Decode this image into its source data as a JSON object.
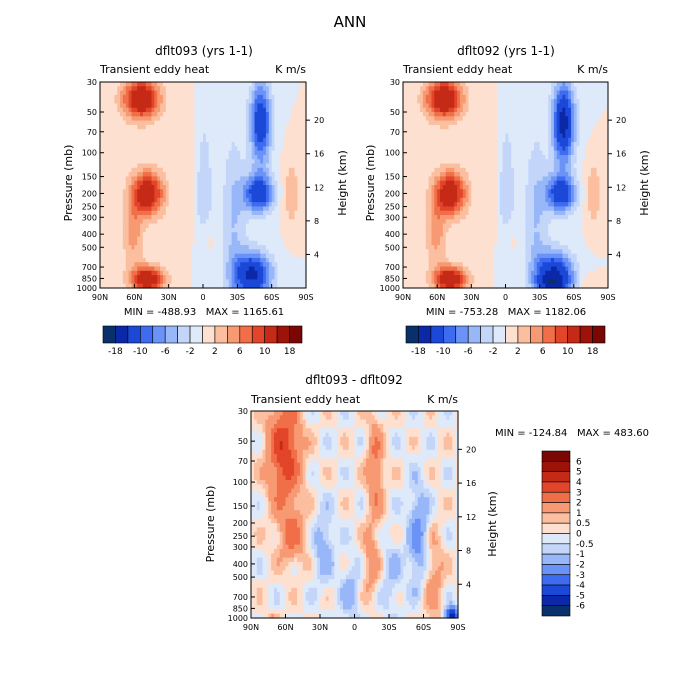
{
  "page_title": "ANN",
  "chart_data": [
    {
      "type": "heatmap",
      "title": "dflt093 (yrs 1-1)",
      "subtitle_left": "Transient eddy heat",
      "subtitle_right": "K m/s",
      "xlabel": "",
      "ylabel": "Pressure (mb)",
      "ylabel_right": "Height (km)",
      "x_ticks": [
        "90N",
        "60N",
        "30N",
        "0",
        "30S",
        "60S",
        "90S"
      ],
      "y_ticks": [
        "30",
        "50",
        "70",
        "100",
        "150",
        "200",
        "250",
        "300",
        "400",
        "500",
        "700",
        "850",
        "1000"
      ],
      "y_ticks_right": [
        "20",
        "16",
        "12",
        "8",
        "4"
      ],
      "ylim": [
        1000,
        30
      ],
      "min_label": "MIN = -488.93",
      "max_label": "MAX = 1165.61",
      "colorbar_labels": [
        "-18",
        "-10",
        "-6",
        "-2",
        "2",
        "6",
        "10",
        "18"
      ],
      "levels": [
        -18,
        -14,
        -10,
        -8,
        -6,
        -4,
        -2,
        0,
        2,
        4,
        6,
        8,
        10,
        14,
        18
      ]
    },
    {
      "type": "heatmap",
      "title": "dflt092 (yrs 1-1)",
      "subtitle_left": "Transient eddy heat",
      "subtitle_right": "K m/s",
      "xlabel": "",
      "ylabel": "Pressure (mb)",
      "ylabel_right": "Height (km)",
      "x_ticks": [
        "90N",
        "60N",
        "30N",
        "0",
        "30S",
        "60S",
        "90S"
      ],
      "y_ticks": [
        "30",
        "50",
        "70",
        "100",
        "150",
        "200",
        "250",
        "300",
        "400",
        "500",
        "700",
        "850",
        "1000"
      ],
      "y_ticks_right": [
        "20",
        "16",
        "12",
        "8",
        "4"
      ],
      "ylim": [
        1000,
        30
      ],
      "min_label": "MIN = -753.28",
      "max_label": "MAX = 1182.06",
      "colorbar_labels": [
        "-18",
        "-10",
        "-6",
        "-2",
        "2",
        "6",
        "10",
        "18"
      ],
      "levels": [
        -18,
        -14,
        -10,
        -8,
        -6,
        -4,
        -2,
        0,
        2,
        4,
        6,
        8,
        10,
        14,
        18
      ]
    },
    {
      "type": "heatmap",
      "title": "dflt093 - dflt092",
      "subtitle_left": "Transient eddy heat",
      "subtitle_right": "K m/s",
      "xlabel": "",
      "ylabel": "Pressure (mb)",
      "ylabel_right": "Height (km)",
      "x_ticks": [
        "90N",
        "60N",
        "30N",
        "0",
        "30S",
        "60S",
        "90S"
      ],
      "y_ticks": [
        "30",
        "50",
        "70",
        "100",
        "150",
        "200",
        "250",
        "300",
        "400",
        "500",
        "700",
        "850",
        "1000"
      ],
      "y_ticks_right": [
        "20",
        "16",
        "12",
        "8",
        "4"
      ],
      "ylim": [
        1000,
        30
      ],
      "min_label": "MIN = -124.84",
      "max_label": "MAX = 483.60",
      "colorbar_labels": [
        "6",
        "5",
        "4",
        "3",
        "2",
        "1",
        "0.5",
        "0",
        "-0.5",
        "-1",
        "-2",
        "-3",
        "-4",
        "-5",
        "-6"
      ],
      "levels": [
        -6,
        -5,
        -4,
        -3,
        -2,
        -1,
        -0.5,
        0,
        0.5,
        1,
        2,
        3,
        4,
        5,
        6
      ]
    }
  ],
  "colors": {
    "scale": [
      "#08306b",
      "#0a28a8",
      "#1c48d8",
      "#3e6cf0",
      "#6b93f7",
      "#98b7f8",
      "#c3d6fa",
      "#deeaf9",
      "#fde0d0",
      "#fbbfa0",
      "#f79a73",
      "#f06e48",
      "#e2452a",
      "#c42a16",
      "#9e1309",
      "#7a0703"
    ],
    "frame": "#000000",
    "background": "#ffffff"
  }
}
